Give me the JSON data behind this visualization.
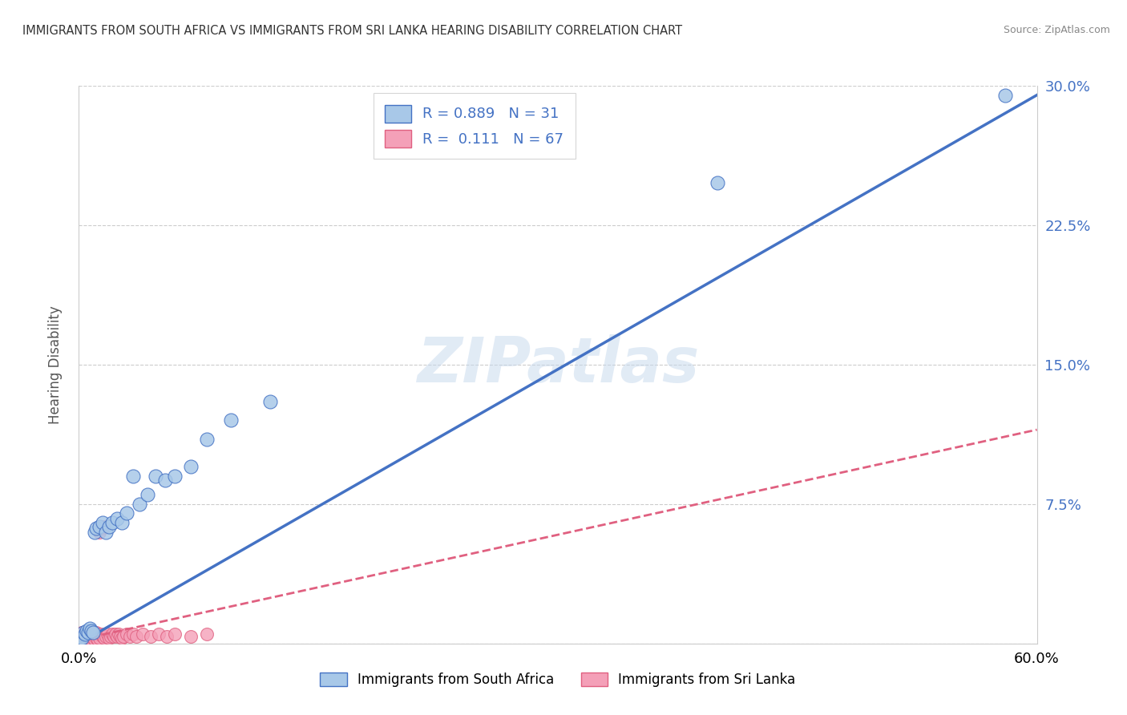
{
  "title": "IMMIGRANTS FROM SOUTH AFRICA VS IMMIGRANTS FROM SRI LANKA HEARING DISABILITY CORRELATION CHART",
  "source": "Source: ZipAtlas.com",
  "ylabel": "Hearing Disability",
  "xlim": [
    0.0,
    0.6
  ],
  "ylim": [
    0.0,
    0.3
  ],
  "yticks": [
    0.0,
    0.075,
    0.15,
    0.225,
    0.3
  ],
  "ytick_labels_right": [
    "",
    "7.5%",
    "15.0%",
    "22.5%",
    "30.0%"
  ],
  "xticks": [
    0.0,
    0.1,
    0.2,
    0.3,
    0.4,
    0.5,
    0.6
  ],
  "xtick_labels": [
    "0.0%",
    "",
    "",
    "",
    "",
    "",
    "60.0%"
  ],
  "legend1_r": "0.889",
  "legend1_n": "31",
  "legend2_r": "0.111",
  "legend2_n": "67",
  "legend_label1": "Immigrants from South Africa",
  "legend_label2": "Immigrants from Sri Lanka",
  "color_blue": "#a8c8e8",
  "color_pink": "#f4a0b8",
  "line_blue": "#4472c4",
  "line_pink": "#e06080",
  "watermark": "ZIPatlas",
  "sa_x": [
    0.001,
    0.002,
    0.003,
    0.004,
    0.005,
    0.006,
    0.007,
    0.008,
    0.009,
    0.01,
    0.011,
    0.013,
    0.015,
    0.017,
    0.019,
    0.021,
    0.024,
    0.027,
    0.03,
    0.034,
    0.038,
    0.043,
    0.048,
    0.054,
    0.06,
    0.07,
    0.08,
    0.095,
    0.12,
    0.4,
    0.58
  ],
  "sa_y": [
    0.003,
    0.003,
    0.006,
    0.005,
    0.007,
    0.006,
    0.008,
    0.007,
    0.006,
    0.06,
    0.062,
    0.063,
    0.065,
    0.06,
    0.063,
    0.065,
    0.067,
    0.065,
    0.07,
    0.09,
    0.075,
    0.08,
    0.09,
    0.088,
    0.09,
    0.095,
    0.11,
    0.12,
    0.13,
    0.248,
    0.295
  ],
  "sl_x": [
    0.0,
    0.0,
    0.001,
    0.001,
    0.001,
    0.001,
    0.002,
    0.002,
    0.002,
    0.002,
    0.003,
    0.003,
    0.003,
    0.003,
    0.004,
    0.004,
    0.004,
    0.005,
    0.005,
    0.005,
    0.006,
    0.006,
    0.006,
    0.007,
    0.007,
    0.007,
    0.008,
    0.008,
    0.009,
    0.009,
    0.01,
    0.01,
    0.011,
    0.011,
    0.012,
    0.012,
    0.013,
    0.013,
    0.014,
    0.014,
    0.015,
    0.015,
    0.016,
    0.016,
    0.017,
    0.018,
    0.019,
    0.02,
    0.021,
    0.022,
    0.023,
    0.024,
    0.025,
    0.026,
    0.027,
    0.028,
    0.03,
    0.032,
    0.034,
    0.036,
    0.04,
    0.045,
    0.05,
    0.055,
    0.06,
    0.07,
    0.08
  ],
  "sl_y": [
    0.002,
    0.003,
    0.001,
    0.003,
    0.004,
    0.005,
    0.002,
    0.003,
    0.004,
    0.006,
    0.001,
    0.003,
    0.005,
    0.006,
    0.002,
    0.004,
    0.006,
    0.002,
    0.003,
    0.005,
    0.001,
    0.003,
    0.006,
    0.002,
    0.004,
    0.007,
    0.002,
    0.005,
    0.003,
    0.006,
    0.002,
    0.005,
    0.003,
    0.006,
    0.002,
    0.005,
    0.06,
    0.003,
    0.062,
    0.005,
    0.062,
    0.004,
    0.063,
    0.003,
    0.004,
    0.005,
    0.003,
    0.004,
    0.005,
    0.004,
    0.005,
    0.004,
    0.005,
    0.004,
    0.003,
    0.004,
    0.005,
    0.004,
    0.005,
    0.004,
    0.005,
    0.004,
    0.005,
    0.004,
    0.005,
    0.004,
    0.005
  ],
  "sa_line_x0": 0.0,
  "sa_line_y0": 0.0,
  "sa_line_x1": 0.6,
  "sa_line_y1": 0.295,
  "sl_line_x0": 0.0,
  "sl_line_y0": 0.002,
  "sl_line_x1": 0.6,
  "sl_line_y1": 0.115
}
